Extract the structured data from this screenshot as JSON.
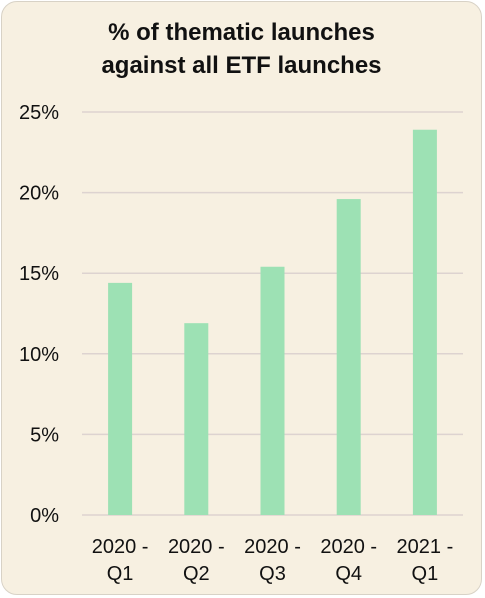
{
  "chart_data": {
    "type": "bar",
    "title": "% of thematic launches\nagainst all ETF launches",
    "xlabel": "",
    "ylabel": "",
    "categories": [
      [
        "2020 -",
        "Q1"
      ],
      [
        "2020 -",
        "Q2"
      ],
      [
        "2020 -",
        "Q3"
      ],
      [
        "2020 -",
        "Q4"
      ],
      [
        "2021 -",
        "Q1"
      ]
    ],
    "values": [
      14.4,
      11.9,
      15.4,
      19.6,
      23.9
    ],
    "ylim": [
      0,
      25
    ],
    "yticks": [
      0,
      5,
      10,
      15,
      20,
      25
    ],
    "ytick_labels": [
      "0%",
      "5%",
      "10%",
      "15%",
      "20%",
      "25%"
    ],
    "grid": true,
    "legend": "none",
    "colors": {
      "bar": "#9de1b4",
      "grid": "#ddd3d0",
      "background": "#f7f0e1",
      "text": "#111111"
    }
  }
}
